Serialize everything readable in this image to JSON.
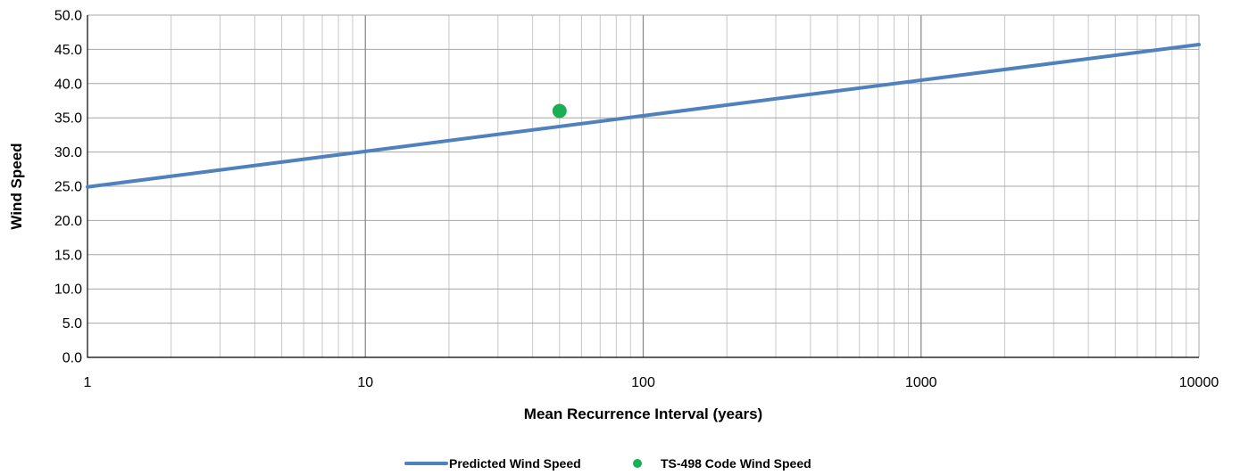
{
  "chart_data": {
    "type": "line",
    "xlabel": "Mean Recurrence Interval (years)",
    "ylabel": "Wind Speed",
    "x_scale": "log",
    "xlim": [
      1,
      10000
    ],
    "ylim": [
      0,
      50
    ],
    "grid": true,
    "legend_position": "bottom-center",
    "x_ticks": [
      "1",
      "10",
      "100",
      "1000",
      "10000"
    ],
    "y_ticks": [
      "0.0",
      "5.0",
      "10.0",
      "15.0",
      "20.0",
      "25.0",
      "30.0",
      "35.0",
      "40.0",
      "45.0",
      "50.0"
    ],
    "series": [
      {
        "name": "Predicted Wind Speed",
        "type": "line",
        "color": "#4f81bd",
        "x": [
          1,
          10,
          100,
          1000,
          10000
        ],
        "y": [
          24.9,
          30.1,
          35.3,
          40.5,
          45.7
        ]
      },
      {
        "name": "TS-498 Code Wind Speed",
        "type": "scatter",
        "color": "#1aaf54",
        "x": [
          50
        ],
        "y": [
          36.0
        ]
      }
    ]
  }
}
